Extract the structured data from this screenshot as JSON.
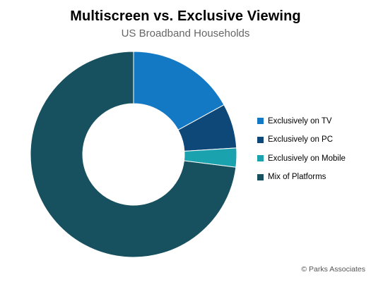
{
  "title": "Multiscreen vs. Exclusive Viewing",
  "subtitle": "US Broadband Households",
  "source": "© Parks Associates",
  "chart_data": {
    "type": "pie",
    "variant": "donut",
    "title": "Multiscreen vs. Exclusive Viewing",
    "subtitle": "US Broadband Households",
    "legend_position": "right",
    "series": [
      {
        "name": "Exclusively on TV",
        "value": 17,
        "color": "#1479C4"
      },
      {
        "name": "Exclusively on PC",
        "value": 7,
        "color": "#0D4878"
      },
      {
        "name": "Exclusively on Mobile",
        "value": 3,
        "color": "#1AA3AE"
      },
      {
        "name": "Mix of Platforms",
        "value": 73,
        "color": "#17505E"
      }
    ]
  }
}
